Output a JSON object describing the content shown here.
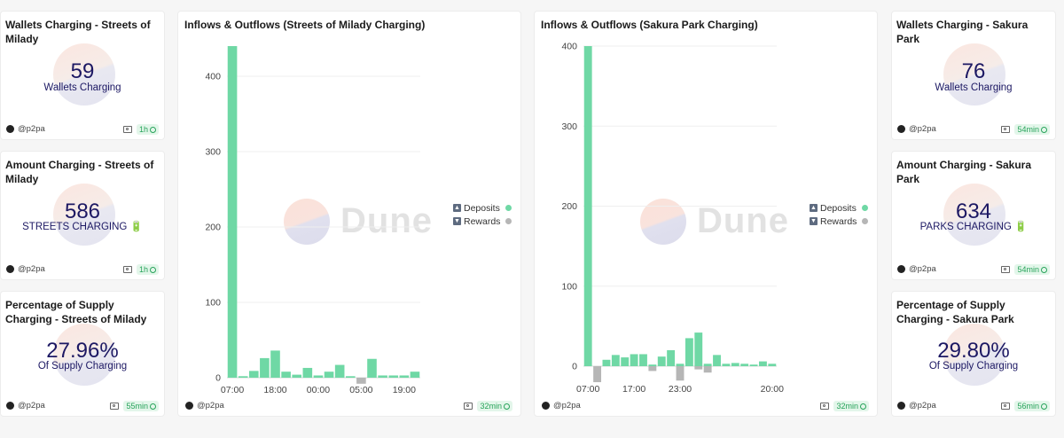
{
  "author": "@p2pa",
  "colors": {
    "deposits": "#6fd8a5",
    "rewards": "#b6b6b6",
    "counter_text": "#1c1863"
  },
  "counters": {
    "milady_wallets": {
      "title": "Wallets Charging - Streets of Milady",
      "value": "59",
      "label": "Wallets Charging",
      "refresh": "1h"
    },
    "milady_amount": {
      "title": "Amount Charging - Streets of Milady",
      "value": "586",
      "label": "STREETS CHARGING 🔋",
      "refresh": "1h"
    },
    "milady_percent": {
      "title": "Percentage of Supply Charging - Streets of Milady",
      "value": "27.96%",
      "label": "Of Supply Charging",
      "refresh": "55min"
    },
    "sakura_wallets": {
      "title": "Wallets Charging - Sakura Park",
      "value": "76",
      "label": "Wallets Charging",
      "refresh": "54min"
    },
    "sakura_amount": {
      "title": "Amount Charging - Sakura Park",
      "value": "634",
      "label": "PARKS CHARGING 🔋",
      "refresh": "54min"
    },
    "sakura_percent": {
      "title": "Percentage of Supply Charging - Sakura Park",
      "value": "29.80%",
      "label": "Of Supply Charging",
      "refresh": "56min"
    }
  },
  "charts": {
    "milady": {
      "title": "Inflows & Outflows (Streets of Milady Charging)",
      "refresh": "32min",
      "watermark": "Dune",
      "legend": {
        "deposits": "Deposits",
        "rewards": "Rewards"
      }
    },
    "sakura": {
      "title": "Inflows & Outflows (Sakura Park Charging)",
      "refresh": "32min",
      "watermark": "Dune",
      "legend": {
        "deposits": "Deposits",
        "rewards": "Rewards"
      }
    }
  },
  "chart_data": [
    {
      "type": "bar",
      "title": "Inflows & Outflows (Streets of Milady Charging)",
      "ylim": [
        0,
        440
      ],
      "yticks": [
        0,
        100,
        200,
        300,
        400
      ],
      "xtick_labels": [
        "07:00",
        "18:00",
        "00:00",
        "05:00",
        "19:00"
      ],
      "xtick_indices": [
        0,
        4,
        8,
        12,
        16
      ],
      "legend": "right",
      "series": [
        {
          "name": "Deposits",
          "values": [
            440,
            2,
            9,
            26,
            36,
            8,
            4,
            13,
            3,
            8,
            17,
            2,
            0,
            25,
            3,
            3,
            3,
            8
          ]
        },
        {
          "name": "Rewards",
          "values": [
            0,
            0,
            0,
            0,
            0,
            0,
            0,
            0,
            0,
            0,
            0,
            0,
            -8,
            0,
            0,
            0,
            0,
            0
          ]
        }
      ]
    },
    {
      "type": "bar",
      "title": "Inflows & Outflows (Sakura Park Charging)",
      "ylim": [
        -22,
        400
      ],
      "yticks": [
        0,
        100,
        200,
        300,
        400
      ],
      "xtick_labels": [
        "07:00",
        "17:00",
        "23:00",
        "20:00"
      ],
      "xtick_indices": [
        0,
        5,
        10,
        20
      ],
      "legend": "right",
      "series": [
        {
          "name": "Deposits",
          "values": [
            400,
            0,
            8,
            14,
            11,
            15,
            15,
            2,
            12,
            20,
            3,
            35,
            42,
            3,
            14,
            3,
            4,
            3,
            2,
            6,
            3
          ]
        },
        {
          "name": "Rewards",
          "values": [
            0,
            -20,
            0,
            0,
            0,
            0,
            0,
            -6,
            0,
            0,
            -18,
            0,
            -4,
            -8,
            0,
            0,
            0,
            0,
            0,
            0,
            0
          ]
        }
      ]
    }
  ]
}
